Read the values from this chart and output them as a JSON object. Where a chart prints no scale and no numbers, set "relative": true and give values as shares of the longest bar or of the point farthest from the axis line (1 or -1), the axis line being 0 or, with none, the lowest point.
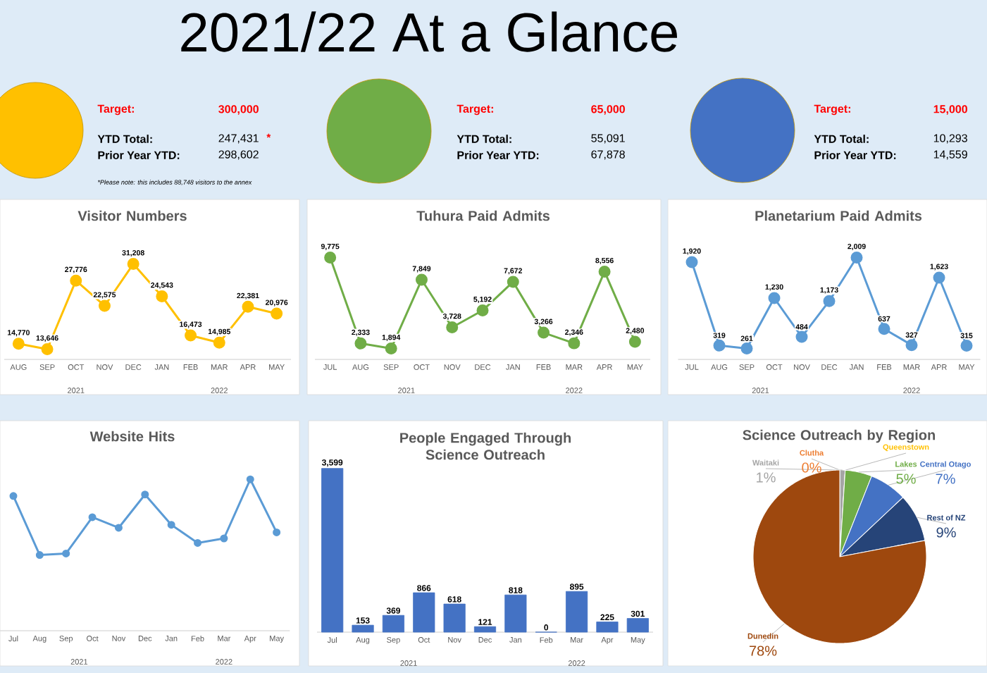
{
  "chart_data": [
    {
      "type": "other",
      "title": "2021/22  At a Glance"
    },
    {
      "type": "other",
      "annotations": [
        "Target:",
        "300,000",
        "YTD Total:",
        "247,431",
        "Prior Year YTD:",
        "298,602",
        "*",
        "*Please note: this includes 88,748 visitors to the annex"
      ]
    },
    {
      "type": "other",
      "annotations": [
        "Target:",
        "65,000",
        "YTD Total:",
        "55,091",
        "Prior Year YTD:",
        "67,878"
      ]
    },
    {
      "type": "other",
      "annotations": [
        "Target:",
        "15,000",
        "YTD Total:",
        "10,293",
        "Prior Year YTD:",
        "14,559"
      ]
    },
    {
      "type": "line",
      "title": "Visitor Numbers",
      "categories": [
        "AUG",
        "SEP",
        "OCT",
        "NOV",
        "DEC",
        "JAN",
        "FEB",
        "MAR",
        "APR",
        "MAY"
      ],
      "color": "#ffc000",
      "marker": "circle",
      "values": [
        14770,
        13646,
        27776,
        22575,
        31208,
        24543,
        16473,
        14985,
        22381,
        20976
      ],
      "value_labels": [
        "14,770",
        "13,646",
        "27,776",
        "22,575",
        "31,208",
        "24,543",
        "16,473",
        "14,985",
        "22,381",
        "20,976"
      ],
      "annotations": [
        "2021",
        "2022"
      ]
    },
    {
      "type": "line",
      "title": "Tuhura Paid Admits",
      "categories": [
        "JUL",
        "AUG",
        "SEP",
        "OCT",
        "NOV",
        "DEC",
        "JAN",
        "FEB",
        "MAR",
        "APR",
        "MAY"
      ],
      "color": "#70ad47",
      "marker": "circle",
      "values": [
        9775,
        2333,
        1894,
        7849,
        3728,
        5192,
        7672,
        3266,
        2346,
        8556,
        2480
      ],
      "value_labels": [
        "9,775",
        "2,333",
        "1,894",
        "7,849",
        "3,728",
        "5,192",
        "7,672",
        "3,266",
        "2,346",
        "8,556",
        "2,480"
      ],
      "annotations": [
        "2021",
        "2022"
      ]
    },
    {
      "type": "line",
      "title": "Planetarium Paid Admits",
      "categories": [
        "JUL",
        "AUG",
        "SEP",
        "OCT",
        "NOV",
        "DEC",
        "JAN",
        "FEB",
        "MAR",
        "APR",
        "MAY"
      ],
      "color": "#5b9bd5",
      "marker": "circle",
      "values": [
        1920,
        319,
        261,
        1230,
        484,
        1173,
        2009,
        637,
        327,
        1623,
        315
      ],
      "value_labels": [
        "1,920",
        "319",
        "261",
        "1,230",
        "484",
        "1,173",
        "2,009",
        "637",
        "327",
        "1,623",
        "315"
      ],
      "annotations": [
        "2021",
        "2022"
      ]
    },
    {
      "type": "line",
      "title": "Website Hits",
      "relative": true,
      "categories": [
        "Jul",
        "Aug",
        "Sep",
        "Oct",
        "Nov",
        "Dec",
        "Jan",
        "Feb",
        "Mar",
        "Apr",
        "May"
      ],
      "color": "#5b9bd5",
      "marker": "circle",
      "values": [
        0.89,
        0.5,
        0.51,
        0.75,
        0.68,
        0.9,
        0.7,
        0.58,
        0.61,
        1,
        0.65
      ],
      "annotations": [
        "2021",
        "2022"
      ]
    },
    {
      "type": "bar",
      "title": "People Engaged Through Science Outreach",
      "categories": [
        "Jul",
        "Aug",
        "Sep",
        "Oct",
        "Nov",
        "Dec",
        "Jan",
        "Feb",
        "Mar",
        "Apr",
        "May"
      ],
      "color": "#4472c4",
      "values": [
        3599,
        153,
        369,
        866,
        618,
        121,
        818,
        0,
        895,
        225,
        301
      ],
      "value_labels": [
        "3,599",
        "153",
        "369",
        "866",
        "618",
        "121",
        "818",
        "0",
        "895",
        "225",
        "301"
      ],
      "annotations": [
        "2021",
        "2022"
      ]
    },
    {
      "type": "pie",
      "title": "Science Outreach by Region",
      "categories": [
        "Clutha",
        "Waitaki",
        "Queenstown",
        "Lakes",
        "Central Otago",
        "Rest of NZ",
        "Dunedin"
      ],
      "values": [
        0,
        1,
        0,
        5,
        7,
        9,
        78
      ],
      "colors": [
        "#ed7d31",
        "#a5a5a5",
        "#ffc000",
        "#70ad47",
        "#4472c4",
        "#264478",
        "#9e480e"
      ],
      "value_labels": [
        "0%",
        "1%",
        null,
        "5%",
        "7%",
        "9%",
        "78%"
      ]
    }
  ]
}
